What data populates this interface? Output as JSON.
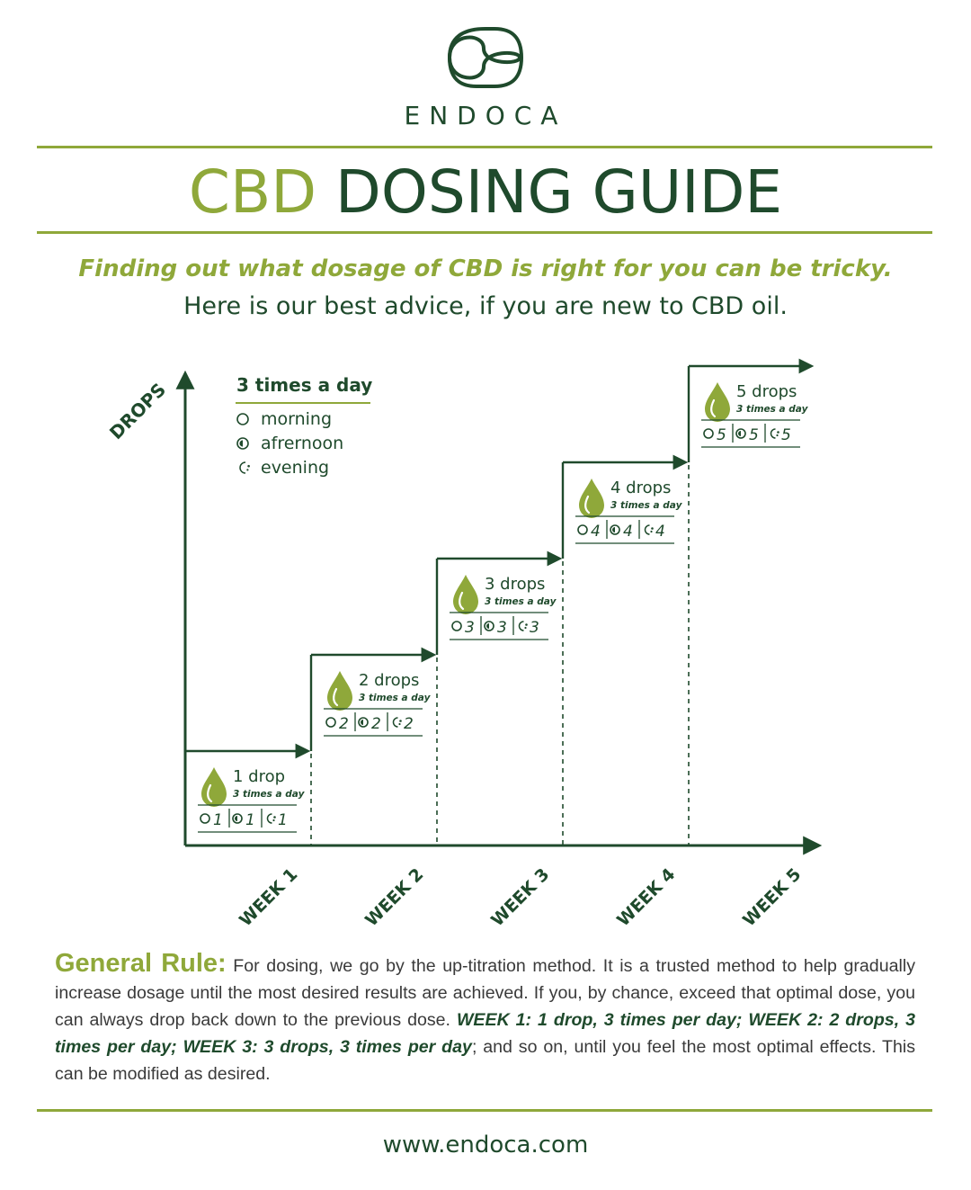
{
  "brand": {
    "name": "ENDOCA",
    "website": "www.endoca.com"
  },
  "title": {
    "highlight": "CBD",
    "rest": "DOSING GUIDE"
  },
  "subtitle": {
    "line1": "Finding out what dosage of CBD is right for you can be tricky.",
    "line2": "Here is our best advice, if you are new to CBD oil."
  },
  "chart_data": {
    "type": "step",
    "ylabel": "DROPS",
    "legend": {
      "title": "3 times a day",
      "items": [
        {
          "icon": "sun-circle-icon",
          "label": "morning"
        },
        {
          "icon": "half-moon-icon",
          "label": "afrernoon"
        },
        {
          "icon": "crescent-moon-icon",
          "label": "evening"
        }
      ]
    },
    "categories": [
      "WEEK 1",
      "WEEK 2",
      "WEEK 3",
      "WEEK 4",
      "WEEK 5"
    ],
    "steps": [
      {
        "week": "WEEK 1",
        "drops": 1,
        "label": "1 drop",
        "freq": "3 times a day",
        "schedule": [
          "1",
          "1",
          "1"
        ]
      },
      {
        "week": "WEEK 2",
        "drops": 2,
        "label": "2 drops",
        "freq": "3 times a day",
        "schedule": [
          "2",
          "2",
          "2"
        ]
      },
      {
        "week": "WEEK 3",
        "drops": 3,
        "label": "3 drops",
        "freq": "3 times a day",
        "schedule": [
          "3",
          "3",
          "3"
        ]
      },
      {
        "week": "WEEK 4",
        "drops": 4,
        "label": "4 drops",
        "freq": "3 times a day",
        "schedule": [
          "4",
          "4",
          "4"
        ]
      },
      {
        "week": "WEEK 5",
        "drops": 5,
        "label": "5 drops",
        "freq": "3 times a day",
        "schedule": [
          "5",
          "5",
          "5"
        ]
      }
    ]
  },
  "general_rule": {
    "lead": "General Rule:",
    "text1": " For dosing, we go by the up-titration method. It is a trusted method to help gradually increase dosage until the most desired results are achieved. If you, by chance, exceed that optimal dose, you can always drop back down to the previous dose. ",
    "emphasis": "WEEK 1: 1 drop, 3 times per day; WEEK 2: 2 drops, 3 times per day; WEEK 3: 3 drops, 3 times per day",
    "text2": "; and so on, until you feel the most optimal effects. This can be modified as desired."
  },
  "colors": {
    "dark_green": "#1f4a2c",
    "light_green": "#8fa83a"
  }
}
